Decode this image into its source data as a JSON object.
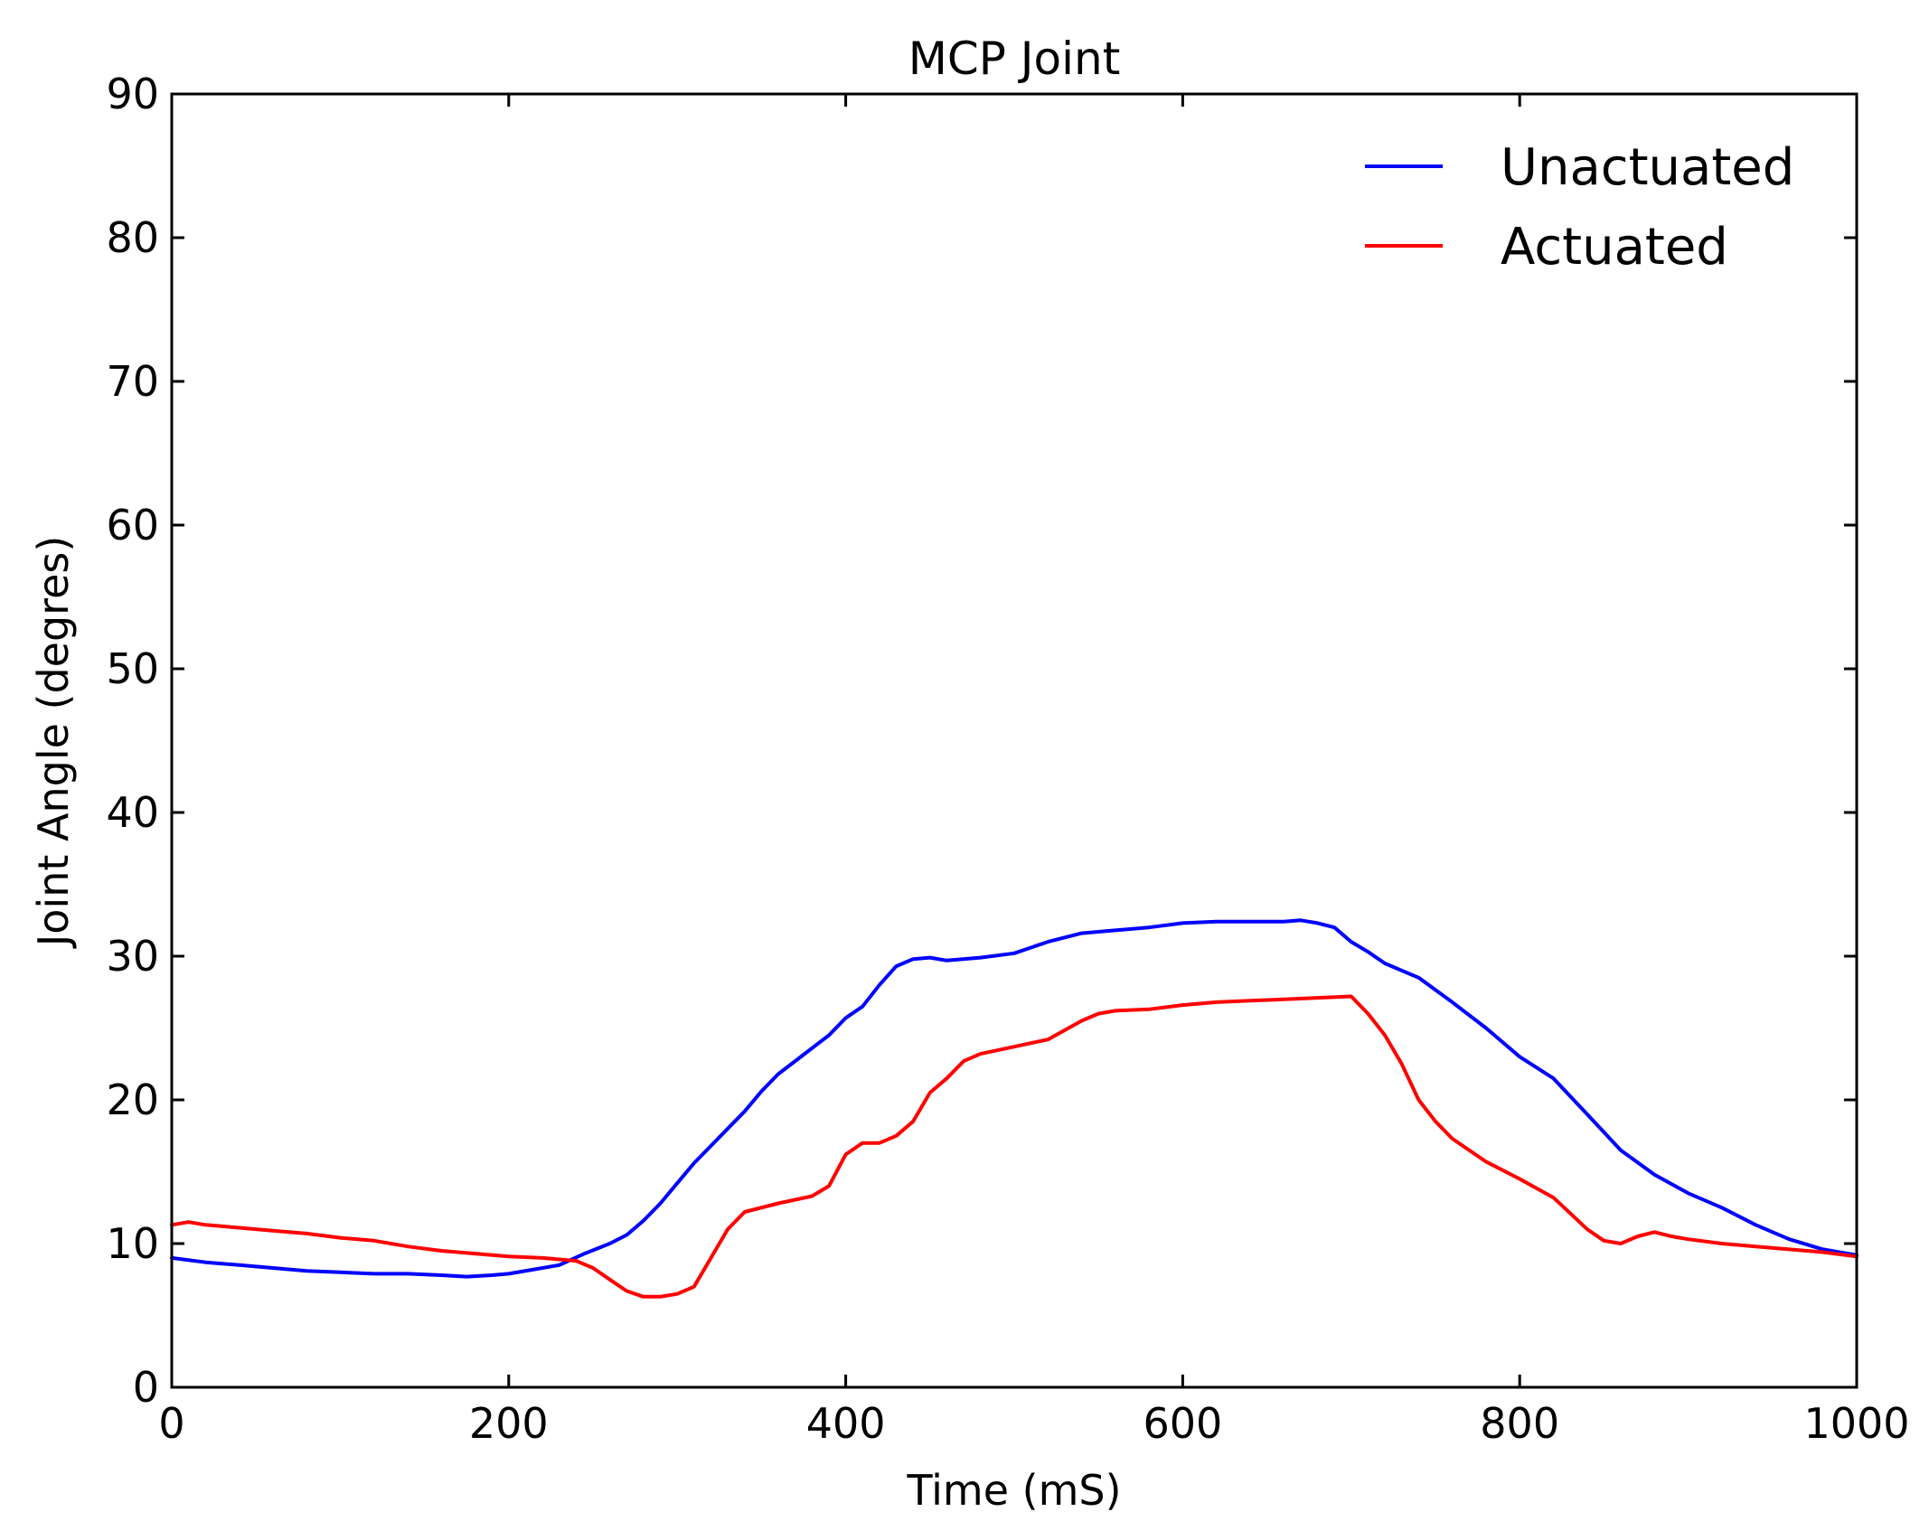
{
  "chart_data": {
    "type": "line",
    "title": "MCP Joint",
    "xlabel": "Time (mS)",
    "ylabel": "Joint Angle (degres)",
    "xlim": [
      0,
      1000
    ],
    "ylim": [
      0,
      90
    ],
    "xticks": [
      0,
      200,
      400,
      600,
      800,
      1000
    ],
    "yticks": [
      0,
      10,
      20,
      30,
      40,
      50,
      60,
      70,
      80,
      90
    ],
    "grid": false,
    "legend_position": "top-right",
    "series": [
      {
        "name": "Unactuated",
        "color": "#0000ff",
        "x": [
          0,
          20,
          40,
          60,
          80,
          100,
          120,
          140,
          160,
          175,
          190,
          200,
          215,
          230,
          245,
          260,
          270,
          280,
          290,
          300,
          310,
          320,
          330,
          340,
          350,
          360,
          370,
          380,
          390,
          400,
          410,
          420,
          430,
          440,
          450,
          460,
          480,
          500,
          520,
          540,
          560,
          580,
          600,
          620,
          640,
          660,
          670,
          680,
          690,
          700,
          710,
          720,
          740,
          760,
          780,
          800,
          820,
          840,
          860,
          880,
          900,
          920,
          940,
          960,
          980,
          1000
        ],
        "values": [
          9.0,
          8.7,
          8.5,
          8.3,
          8.1,
          8.0,
          7.9,
          7.9,
          7.8,
          7.7,
          7.8,
          7.9,
          8.2,
          8.5,
          9.3,
          10.0,
          10.6,
          11.6,
          12.8,
          14.2,
          15.6,
          16.8,
          18.0,
          19.2,
          20.6,
          21.8,
          22.7,
          23.6,
          24.5,
          25.7,
          26.5,
          28.0,
          29.3,
          29.8,
          29.9,
          29.7,
          29.9,
          30.2,
          31.0,
          31.6,
          31.8,
          32.0,
          32.3,
          32.4,
          32.4,
          32.4,
          32.5,
          32.3,
          32.0,
          31.0,
          30.3,
          29.5,
          28.5,
          26.8,
          25.0,
          23.0,
          21.5,
          19.0,
          16.5,
          14.8,
          13.5,
          12.5,
          11.3,
          10.3,
          9.6,
          9.2
        ]
      },
      {
        "name": "Actuated",
        "color": "#ff0000",
        "x": [
          0,
          10,
          20,
          40,
          60,
          80,
          100,
          120,
          140,
          160,
          180,
          200,
          220,
          240,
          250,
          260,
          270,
          280,
          290,
          300,
          310,
          320,
          330,
          340,
          360,
          380,
          390,
          400,
          410,
          420,
          430,
          440,
          450,
          460,
          470,
          480,
          500,
          520,
          540,
          550,
          560,
          580,
          600,
          620,
          640,
          660,
          680,
          700,
          710,
          720,
          730,
          740,
          750,
          760,
          780,
          800,
          820,
          840,
          850,
          860,
          870,
          880,
          890,
          900,
          920,
          940,
          960,
          980,
          1000
        ],
        "values": [
          11.3,
          11.5,
          11.3,
          11.1,
          10.9,
          10.7,
          10.4,
          10.2,
          9.8,
          9.5,
          9.3,
          9.1,
          9.0,
          8.8,
          8.3,
          7.5,
          6.7,
          6.3,
          6.3,
          6.5,
          7.0,
          9.0,
          11.0,
          12.2,
          12.8,
          13.3,
          14.0,
          16.2,
          17.0,
          17.0,
          17.5,
          18.5,
          20.5,
          21.5,
          22.7,
          23.2,
          23.7,
          24.2,
          25.5,
          26.0,
          26.2,
          26.3,
          26.6,
          26.8,
          26.9,
          27.0,
          27.1,
          27.2,
          26.0,
          24.5,
          22.5,
          20.0,
          18.5,
          17.3,
          15.7,
          14.5,
          13.2,
          11.0,
          10.2,
          10.0,
          10.5,
          10.8,
          10.5,
          10.3,
          10.0,
          9.8,
          9.6,
          9.4,
          9.1
        ]
      }
    ]
  }
}
